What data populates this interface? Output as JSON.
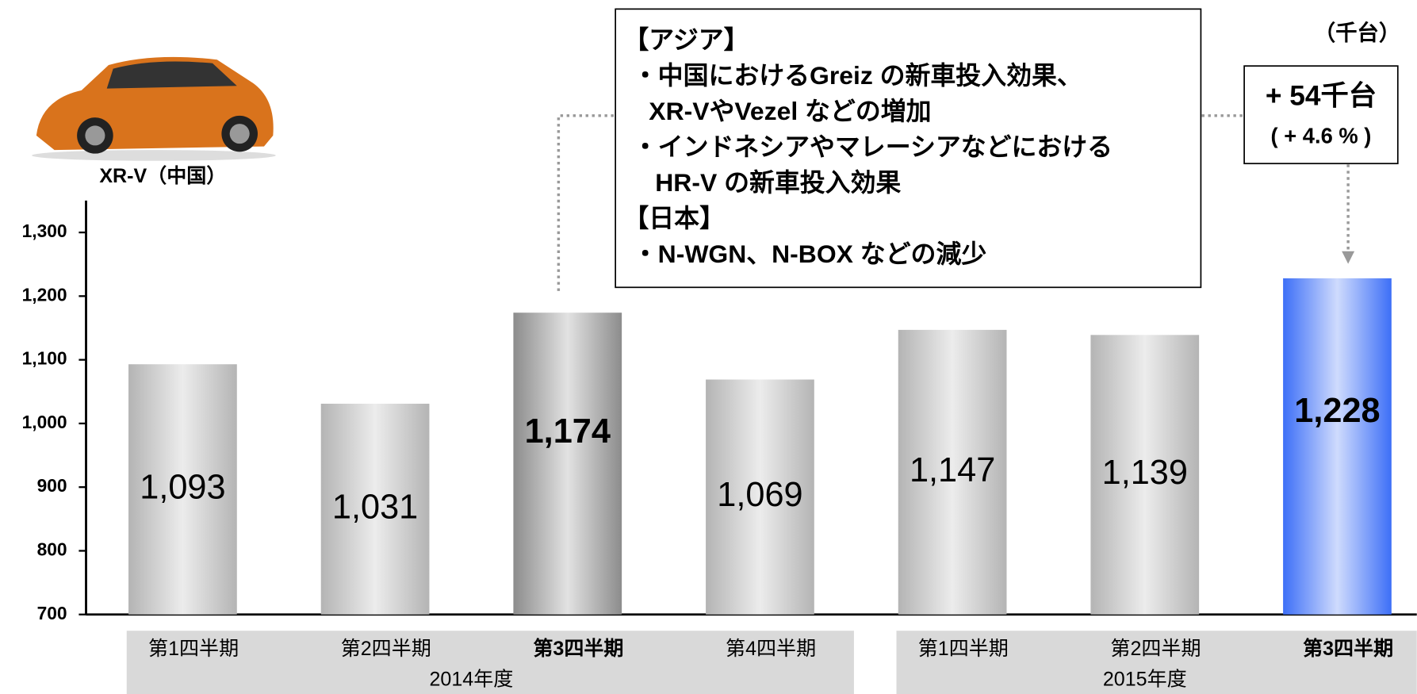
{
  "chart_data": {
    "type": "bar",
    "unit": "（千台）",
    "categories": [
      "第1四半期",
      "第2四半期",
      "第3四半期",
      "第4四半期",
      "第1四半期",
      "第2四半期",
      "第3四半期"
    ],
    "groups": [
      {
        "label": "2014年度",
        "count": 4
      },
      {
        "label": "2015年度",
        "count": 3
      }
    ],
    "values": [
      1093,
      1031,
      1174,
      1069,
      1147,
      1139,
      1228
    ],
    "value_labels": [
      "1,093",
      "1,031",
      "1,174",
      "1,069",
      "1,147",
      "1,139",
      "1,228"
    ],
    "colors": [
      "#b4b4b4",
      "#b4b4b4",
      "#8c8c8c",
      "#b4b4b4",
      "#b4b4b4",
      "#b4b4b4",
      "#3d6ff7"
    ],
    "highlight": [
      2,
      6
    ],
    "ylim": [
      700,
      1350
    ],
    "yticks": [
      {
        "value": 700,
        "label": "700"
      },
      {
        "value": 800,
        "label": "800"
      },
      {
        "value": 900,
        "label": "900"
      },
      {
        "value": 1000,
        "label": "1,000"
      },
      {
        "value": 1100,
        "label": "1,100"
      },
      {
        "value": 1200,
        "label": "1,200"
      },
      {
        "value": 1300,
        "label": "1,300"
      }
    ],
    "image_caption": "XR-V（中国）",
    "note_lines": [
      "【アジア】",
      "・中国におけるGreiz の新車投入効果、",
      "XR-VやVezel などの増加",
      "・インドネシアやマレーシアなどにおける",
      "HR-V の新車投入効果",
      "【日本】",
      "・N-WGN、N-BOX などの減少"
    ],
    "change": "+ 54千台",
    "change_pct": "( + 4.6 % )"
  }
}
